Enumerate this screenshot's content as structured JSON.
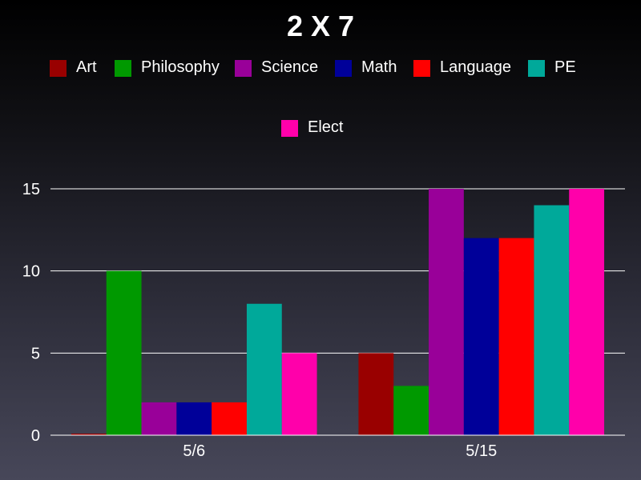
{
  "chart_data": {
    "type": "bar",
    "title": "2 X 7",
    "categories": [
      "5/6",
      "5/15"
    ],
    "series": [
      {
        "name": "Art",
        "color": "#990000",
        "values": [
          0,
          5
        ]
      },
      {
        "name": "Philosophy",
        "color": "#009900",
        "values": [
          10,
          3
        ]
      },
      {
        "name": "Science",
        "color": "#990099",
        "values": [
          2,
          15
        ]
      },
      {
        "name": "Math",
        "color": "#000099",
        "values": [
          2,
          12
        ]
      },
      {
        "name": "Language",
        "color": "#ff0000",
        "values": [
          2,
          12
        ]
      },
      {
        "name": "PE",
        "color": "#00a99a",
        "values": [
          8,
          14
        ]
      },
      {
        "name": "Elect",
        "color": "#ff00aa",
        "values": [
          5,
          15
        ]
      }
    ],
    "xlabel": "",
    "ylabel": "",
    "ylim": [
      0,
      15
    ],
    "yticks": [
      0,
      5,
      10,
      15
    ],
    "grid": true,
    "legend": "top"
  }
}
